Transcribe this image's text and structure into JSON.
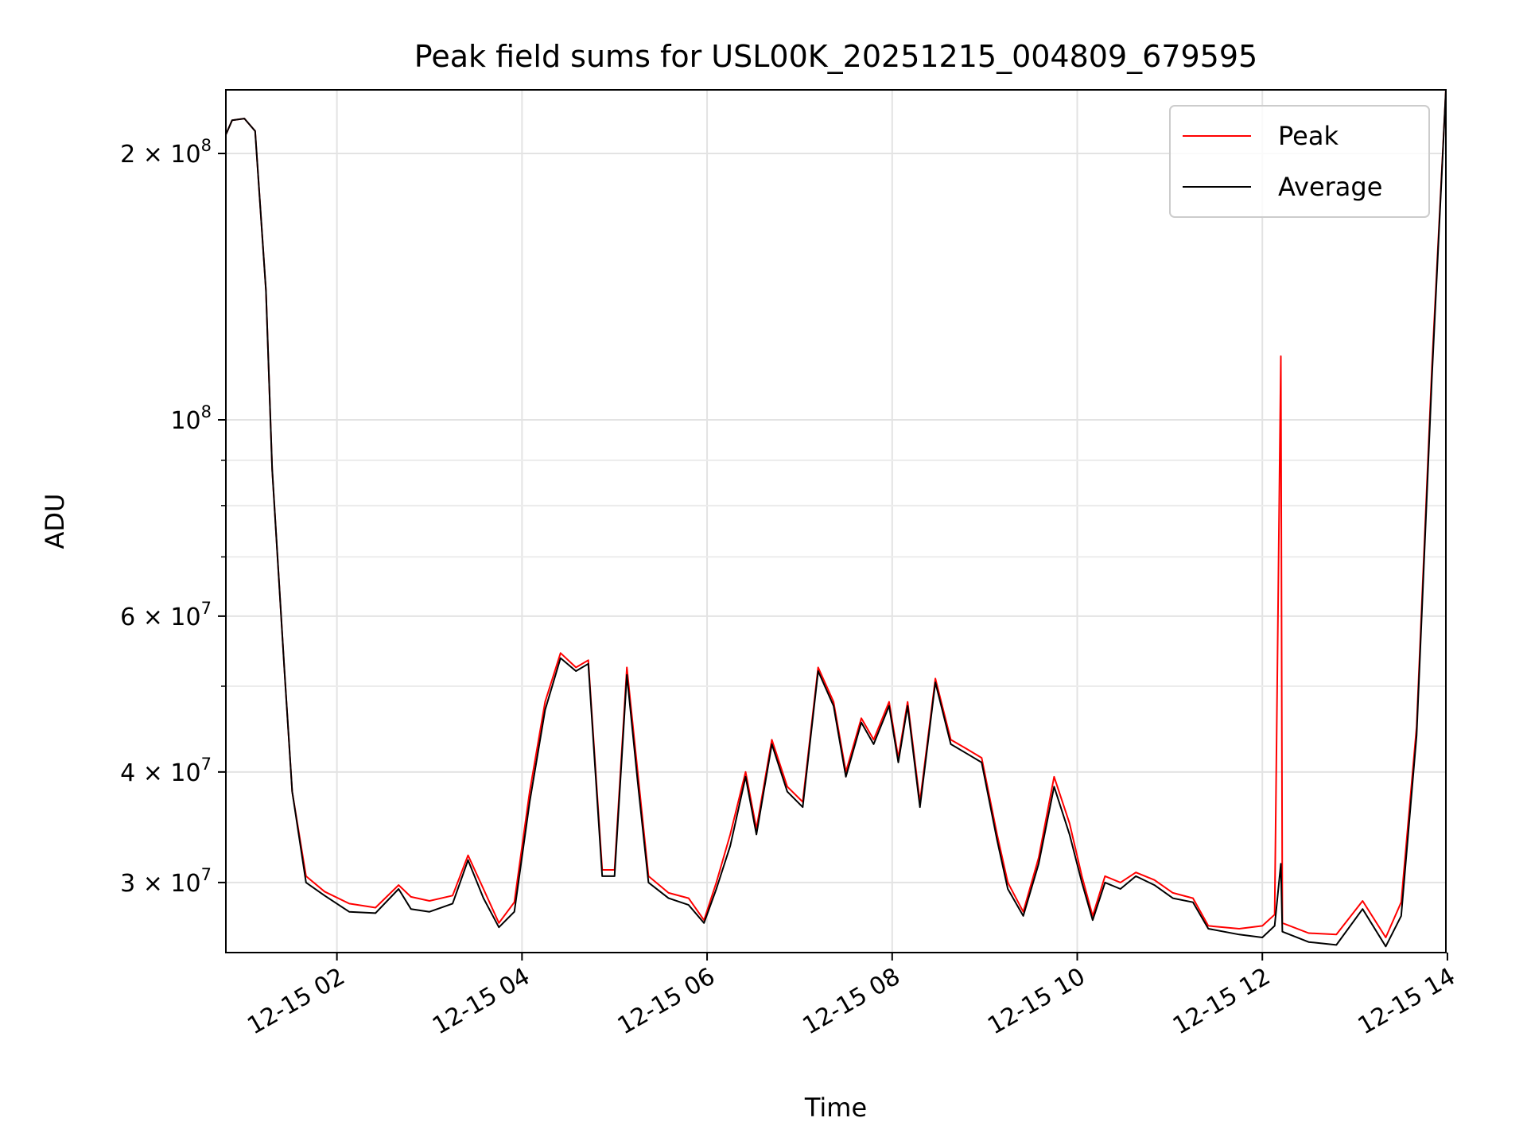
{
  "chart_data": {
    "type": "line",
    "title": "Peak field sums for USL00K_20251215_004809_679595",
    "xlabel": "Time",
    "ylabel": "ADU",
    "y_scale": "log",
    "ylim": [
      25000000,
      236000000
    ],
    "xlim": [
      "2025-12-15 00:48",
      "2025-12-15 13:59"
    ],
    "grid": true,
    "legend_position": "top-right",
    "x_ticks": [
      {
        "label": "12-15 02",
        "value": "2025-12-15 02:00"
      },
      {
        "label": "12-15 04",
        "value": "2025-12-15 04:00"
      },
      {
        "label": "12-15 06",
        "value": "2025-12-15 06:00"
      },
      {
        "label": "12-15 08",
        "value": "2025-12-15 08:00"
      },
      {
        "label": "12-15 10",
        "value": "2025-12-15 10:00"
      },
      {
        "label": "12-15 12",
        "value": "2025-12-15 12:00"
      },
      {
        "label": "12-15 14",
        "value": "2025-12-15 14:00"
      }
    ],
    "y_ticks_major": [
      {
        "label_mantissa": "2 × 10",
        "exponent": "8",
        "value": 200000000
      },
      {
        "label_mantissa": "10",
        "exponent": "8",
        "value": 100000000
      },
      {
        "label_mantissa": "6 × 10",
        "exponent": "7",
        "value": 60000000
      },
      {
        "label_mantissa": "4 × 10",
        "exponent": "7",
        "value": 40000000
      },
      {
        "label_mantissa": "3 × 10",
        "exponent": "7",
        "value": 30000000
      }
    ],
    "y_ticks_minor": [
      90000000,
      80000000,
      70000000,
      50000000
    ],
    "series": [
      {
        "name": "Peak",
        "color": "#ff0000",
        "points": [
          [
            "2025-12-15 00:48",
            210000000
          ],
          [
            "2025-12-15 00:52",
            218000000
          ],
          [
            "2025-12-15 01:00",
            219000000
          ],
          [
            "2025-12-15 01:07",
            212000000
          ],
          [
            "2025-12-15 01:14",
            140000000
          ],
          [
            "2025-12-15 01:18",
            88000000
          ],
          [
            "2025-12-15 01:26",
            52000000
          ],
          [
            "2025-12-15 01:31",
            38000000
          ],
          [
            "2025-12-15 01:40",
            30500000
          ],
          [
            "2025-12-15 01:52",
            29300000
          ],
          [
            "2025-12-15 02:08",
            28400000
          ],
          [
            "2025-12-15 02:25",
            28100000
          ],
          [
            "2025-12-15 02:40",
            29800000
          ],
          [
            "2025-12-15 02:48",
            28900000
          ],
          [
            "2025-12-15 03:00",
            28600000
          ],
          [
            "2025-12-15 03:15",
            29000000
          ],
          [
            "2025-12-15 03:25",
            32200000
          ],
          [
            "2025-12-15 03:35",
            29500000
          ],
          [
            "2025-12-15 03:45",
            27000000
          ],
          [
            "2025-12-15 03:55",
            28500000
          ],
          [
            "2025-12-15 04:05",
            38000000
          ],
          [
            "2025-12-15 04:15",
            48000000
          ],
          [
            "2025-12-15 04:25",
            54500000
          ],
          [
            "2025-12-15 04:35",
            52500000
          ],
          [
            "2025-12-15 04:43",
            53500000
          ],
          [
            "2025-12-15 04:52",
            31000000
          ],
          [
            "2025-12-15 05:00",
            31000000
          ],
          [
            "2025-12-15 05:08",
            52500000
          ],
          [
            "2025-12-15 05:15",
            40000000
          ],
          [
            "2025-12-15 05:22",
            30500000
          ],
          [
            "2025-12-15 05:35",
            29200000
          ],
          [
            "2025-12-15 05:48",
            28800000
          ],
          [
            "2025-12-15 05:58",
            27200000
          ],
          [
            "2025-12-15 06:06",
            30000000
          ],
          [
            "2025-12-15 06:15",
            34000000
          ],
          [
            "2025-12-15 06:25",
            40000000
          ],
          [
            "2025-12-15 06:32",
            34500000
          ],
          [
            "2025-12-15 06:42",
            43500000
          ],
          [
            "2025-12-15 06:52",
            38500000
          ],
          [
            "2025-12-15 07:02",
            37000000
          ],
          [
            "2025-12-15 07:12",
            52500000
          ],
          [
            "2025-12-15 07:22",
            48000000
          ],
          [
            "2025-12-15 07:30",
            40000000
          ],
          [
            "2025-12-15 07:40",
            46000000
          ],
          [
            "2025-12-15 07:48",
            43500000
          ],
          [
            "2025-12-15 07:58",
            48000000
          ],
          [
            "2025-12-15 08:04",
            41500000
          ],
          [
            "2025-12-15 08:10",
            48000000
          ],
          [
            "2025-12-15 08:18",
            37000000
          ],
          [
            "2025-12-15 08:28",
            51000000
          ],
          [
            "2025-12-15 08:38",
            43500000
          ],
          [
            "2025-12-15 08:48",
            42500000
          ],
          [
            "2025-12-15 08:58",
            41500000
          ],
          [
            "2025-12-15 09:08",
            34000000
          ],
          [
            "2025-12-15 09:15",
            30000000
          ],
          [
            "2025-12-15 09:25",
            27800000
          ],
          [
            "2025-12-15 09:35",
            32000000
          ],
          [
            "2025-12-15 09:45",
            39500000
          ],
          [
            "2025-12-15 09:55",
            35000000
          ],
          [
            "2025-12-15 10:03",
            30500000
          ],
          [
            "2025-12-15 10:10",
            27500000
          ],
          [
            "2025-12-15 10:18",
            30500000
          ],
          [
            "2025-12-15 10:28",
            30000000
          ],
          [
            "2025-12-15 10:38",
            30800000
          ],
          [
            "2025-12-15 10:50",
            30200000
          ],
          [
            "2025-12-15 11:02",
            29200000
          ],
          [
            "2025-12-15 11:15",
            28800000
          ],
          [
            "2025-12-15 11:25",
            26800000
          ],
          [
            "2025-12-15 11:45",
            26600000
          ],
          [
            "2025-12-15 12:00",
            26800000
          ],
          [
            "2025-12-15 12:08",
            27600000
          ],
          [
            "2025-12-15 12:12",
            118000000
          ],
          [
            "2025-12-15 12:13",
            27000000
          ],
          [
            "2025-12-15 12:30",
            26300000
          ],
          [
            "2025-12-15 12:48",
            26200000
          ],
          [
            "2025-12-15 13:05",
            28600000
          ],
          [
            "2025-12-15 13:20",
            26000000
          ],
          [
            "2025-12-15 13:30",
            28500000
          ],
          [
            "2025-12-15 13:40",
            45000000
          ],
          [
            "2025-12-15 13:50",
            115000000
          ],
          [
            "2025-12-15 13:59",
            236000000
          ]
        ]
      },
      {
        "name": "Average",
        "color": "#000000",
        "points": [
          [
            "2025-12-15 00:48",
            210000000
          ],
          [
            "2025-12-15 00:52",
            218000000
          ],
          [
            "2025-12-15 01:00",
            219000000
          ],
          [
            "2025-12-15 01:07",
            212000000
          ],
          [
            "2025-12-15 01:14",
            140000000
          ],
          [
            "2025-12-15 01:18",
            88000000
          ],
          [
            "2025-12-15 01:26",
            52000000
          ],
          [
            "2025-12-15 01:31",
            38000000
          ],
          [
            "2025-12-15 01:40",
            30000000
          ],
          [
            "2025-12-15 01:52",
            29000000
          ],
          [
            "2025-12-15 02:08",
            27800000
          ],
          [
            "2025-12-15 02:25",
            27700000
          ],
          [
            "2025-12-15 02:40",
            29500000
          ],
          [
            "2025-12-15 02:48",
            28000000
          ],
          [
            "2025-12-15 03:00",
            27800000
          ],
          [
            "2025-12-15 03:15",
            28400000
          ],
          [
            "2025-12-15 03:25",
            31800000
          ],
          [
            "2025-12-15 03:35",
            28800000
          ],
          [
            "2025-12-15 03:45",
            26700000
          ],
          [
            "2025-12-15 03:55",
            27800000
          ],
          [
            "2025-12-15 04:05",
            37000000
          ],
          [
            "2025-12-15 04:15",
            47000000
          ],
          [
            "2025-12-15 04:25",
            53800000
          ],
          [
            "2025-12-15 04:35",
            52000000
          ],
          [
            "2025-12-15 04:43",
            53000000
          ],
          [
            "2025-12-15 04:52",
            30500000
          ],
          [
            "2025-12-15 05:00",
            30500000
          ],
          [
            "2025-12-15 05:08",
            51500000
          ],
          [
            "2025-12-15 05:15",
            39000000
          ],
          [
            "2025-12-15 05:22",
            30000000
          ],
          [
            "2025-12-15 05:35",
            28800000
          ],
          [
            "2025-12-15 05:48",
            28300000
          ],
          [
            "2025-12-15 05:58",
            27000000
          ],
          [
            "2025-12-15 06:06",
            29500000
          ],
          [
            "2025-12-15 06:15",
            33000000
          ],
          [
            "2025-12-15 06:25",
            39500000
          ],
          [
            "2025-12-15 06:32",
            34000000
          ],
          [
            "2025-12-15 06:42",
            43000000
          ],
          [
            "2025-12-15 06:52",
            38000000
          ],
          [
            "2025-12-15 07:02",
            36500000
          ],
          [
            "2025-12-15 07:12",
            52000000
          ],
          [
            "2025-12-15 07:22",
            47500000
          ],
          [
            "2025-12-15 07:30",
            39500000
          ],
          [
            "2025-12-15 07:40",
            45500000
          ],
          [
            "2025-12-15 07:48",
            43000000
          ],
          [
            "2025-12-15 07:58",
            47500000
          ],
          [
            "2025-12-15 08:04",
            41000000
          ],
          [
            "2025-12-15 08:10",
            47500000
          ],
          [
            "2025-12-15 08:18",
            36500000
          ],
          [
            "2025-12-15 08:28",
            50500000
          ],
          [
            "2025-12-15 08:38",
            43000000
          ],
          [
            "2025-12-15 08:48",
            42000000
          ],
          [
            "2025-12-15 08:58",
            41000000
          ],
          [
            "2025-12-15 09:08",
            33500000
          ],
          [
            "2025-12-15 09:15",
            29500000
          ],
          [
            "2025-12-15 09:25",
            27500000
          ],
          [
            "2025-12-15 09:35",
            31500000
          ],
          [
            "2025-12-15 09:45",
            38500000
          ],
          [
            "2025-12-15 09:55",
            34000000
          ],
          [
            "2025-12-15 10:03",
            30000000
          ],
          [
            "2025-12-15 10:10",
            27200000
          ],
          [
            "2025-12-15 10:18",
            30000000
          ],
          [
            "2025-12-15 10:28",
            29500000
          ],
          [
            "2025-12-15 10:38",
            30500000
          ],
          [
            "2025-12-15 10:50",
            29800000
          ],
          [
            "2025-12-15 11:02",
            28800000
          ],
          [
            "2025-12-15 11:15",
            28500000
          ],
          [
            "2025-12-15 11:25",
            26600000
          ],
          [
            "2025-12-15 11:45",
            26200000
          ],
          [
            "2025-12-15 12:00",
            26000000
          ],
          [
            "2025-12-15 12:08",
            26800000
          ],
          [
            "2025-12-15 12:12",
            31500000
          ],
          [
            "2025-12-15 12:13",
            26400000
          ],
          [
            "2025-12-15 12:30",
            25700000
          ],
          [
            "2025-12-15 12:48",
            25500000
          ],
          [
            "2025-12-15 13:05",
            28000000
          ],
          [
            "2025-12-15 13:20",
            25400000
          ],
          [
            "2025-12-15 13:30",
            27500000
          ],
          [
            "2025-12-15 13:40",
            44000000
          ],
          [
            "2025-12-15 13:50",
            112000000
          ],
          [
            "2025-12-15 13:59",
            236000000
          ]
        ]
      }
    ]
  }
}
